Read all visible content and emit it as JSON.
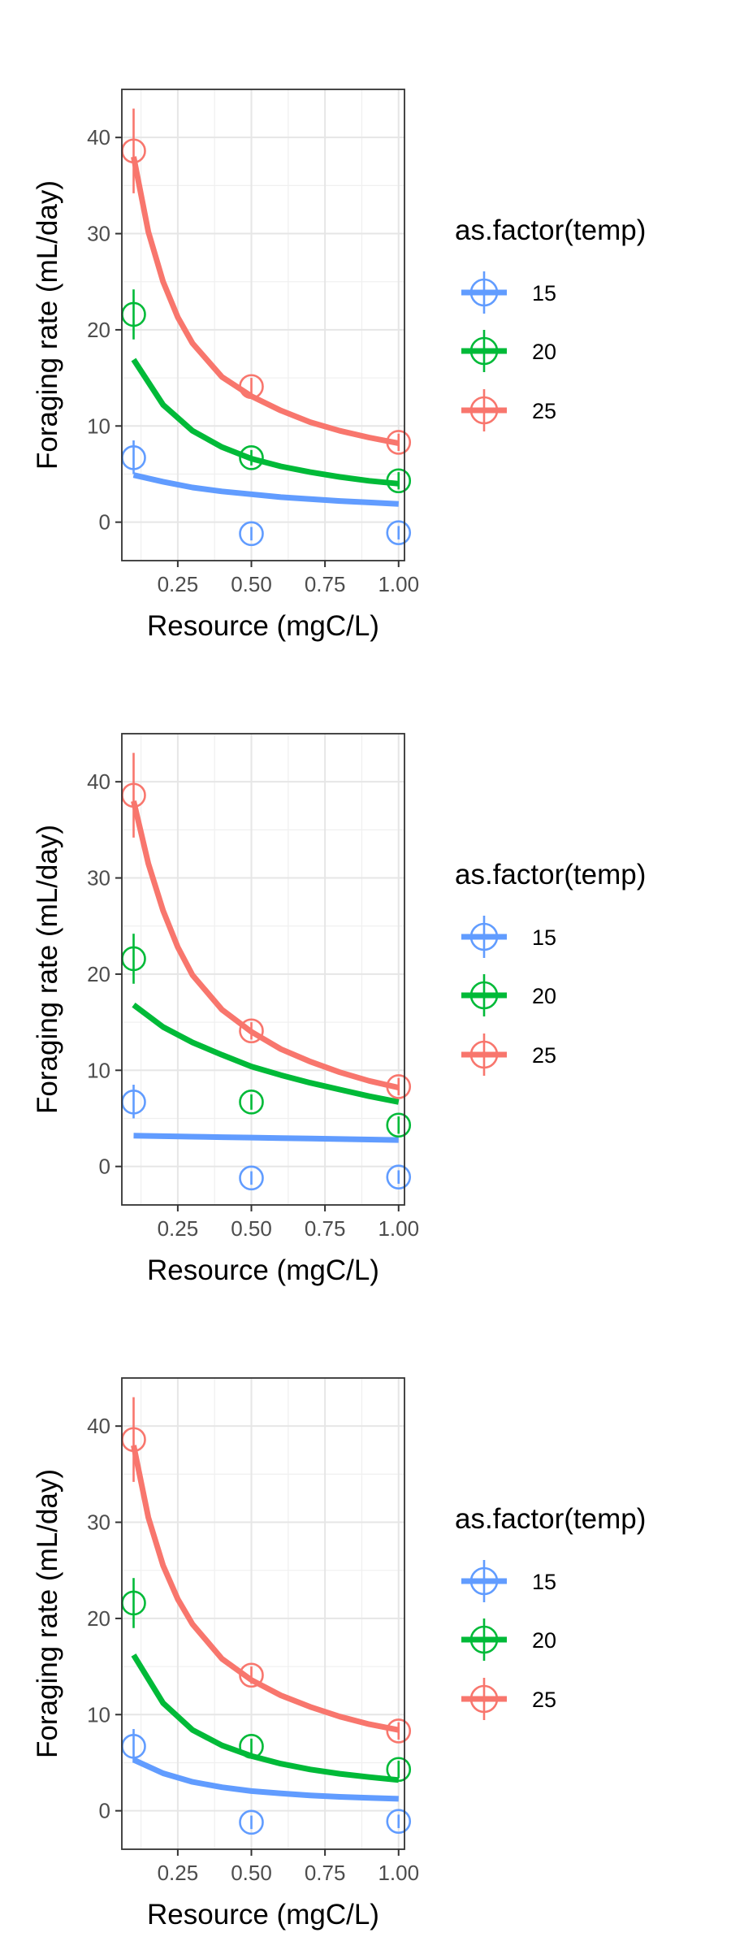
{
  "chart_data": [
    {
      "type": "scatter",
      "xlabel": "Resource (mgC/L)",
      "ylabel": "Foraging rate (mL/day)",
      "xlim": [
        0.06,
        1.02
      ],
      "ylim": [
        -4,
        45
      ],
      "x_ticks": [
        0.25,
        0.5,
        0.75,
        1.0
      ],
      "x_tick_labels": [
        "0.25",
        "0.50",
        "0.75",
        "1.00"
      ],
      "y_ticks": [
        0,
        10,
        20,
        30,
        40
      ],
      "y_tick_labels": [
        "0",
        "10",
        "20",
        "30",
        "40"
      ],
      "grid": true,
      "legend": {
        "title": "as.factor(temp)",
        "position": "right"
      },
      "series": [
        {
          "name": "15",
          "color": "#619CFF",
          "points": [
            {
              "x": 0.1,
              "y": 6.7,
              "ymin": 5.0,
              "ymax": 8.5
            },
            {
              "x": 0.5,
              "y": -1.2,
              "ymin": -1.9,
              "ymax": -0.5
            },
            {
              "x": 1.0,
              "y": -1.1,
              "ymin": -1.8,
              "ymax": -0.4
            }
          ],
          "fit": {
            "x": [
              0.1,
              0.2,
              0.3,
              0.4,
              0.5,
              0.6,
              0.7,
              0.8,
              0.9,
              1.0
            ],
            "y": [
              4.9,
              4.2,
              3.6,
              3.2,
              2.9,
              2.6,
              2.4,
              2.2,
              2.05,
              1.9
            ]
          }
        },
        {
          "name": "20",
          "color": "#00BA38",
          "points": [
            {
              "x": 0.1,
              "y": 21.6,
              "ymin": 19.0,
              "ymax": 24.2
            },
            {
              "x": 0.5,
              "y": 6.7,
              "ymin": 5.9,
              "ymax": 7.5
            },
            {
              "x": 1.0,
              "y": 4.3,
              "ymin": 3.4,
              "ymax": 5.2
            }
          ],
          "fit": {
            "x": [
              0.1,
              0.2,
              0.3,
              0.4,
              0.5,
              0.6,
              0.7,
              0.8,
              0.9,
              1.0
            ],
            "y": [
              16.9,
              12.2,
              9.5,
              7.8,
              6.6,
              5.8,
              5.2,
              4.7,
              4.3,
              4.0
            ]
          }
        },
        {
          "name": "25",
          "color": "#F8766D",
          "points": [
            {
              "x": 0.1,
              "y": 38.6,
              "ymin": 34.2,
              "ymax": 43.0
            },
            {
              "x": 0.5,
              "y": 14.1,
              "ymin": 13.2,
              "ymax": 15.0
            },
            {
              "x": 1.0,
              "y": 8.3,
              "ymin": 7.4,
              "ymax": 9.2
            }
          ],
          "fit": {
            "x": [
              0.1,
              0.15,
              0.2,
              0.25,
              0.3,
              0.4,
              0.5,
              0.6,
              0.7,
              0.8,
              0.9,
              1.0
            ],
            "y": [
              38.0,
              30.2,
              25.0,
              21.3,
              18.6,
              15.1,
              13.1,
              11.6,
              10.4,
              9.5,
              8.8,
              8.2
            ]
          }
        }
      ]
    },
    {
      "type": "scatter",
      "xlabel": "Resource (mgC/L)",
      "ylabel": "Foraging rate (mL/day)",
      "xlim": [
        0.06,
        1.02
      ],
      "ylim": [
        -4,
        45
      ],
      "x_ticks": [
        0.25,
        0.5,
        0.75,
        1.0
      ],
      "x_tick_labels": [
        "0.25",
        "0.50",
        "0.75",
        "1.00"
      ],
      "y_ticks": [
        0,
        10,
        20,
        30,
        40
      ],
      "y_tick_labels": [
        "0",
        "10",
        "20",
        "30",
        "40"
      ],
      "grid": true,
      "legend": {
        "title": "as.factor(temp)",
        "position": "right"
      },
      "series": [
        {
          "name": "15",
          "color": "#619CFF",
          "points": [
            {
              "x": 0.1,
              "y": 6.7,
              "ymin": 5.0,
              "ymax": 8.5
            },
            {
              "x": 0.5,
              "y": -1.2,
              "ymin": -1.9,
              "ymax": -0.5
            },
            {
              "x": 1.0,
              "y": -1.1,
              "ymin": -1.8,
              "ymax": -0.4
            }
          ],
          "fit": {
            "x": [
              0.1,
              0.2,
              0.3,
              0.4,
              0.5,
              0.6,
              0.7,
              0.8,
              0.9,
              1.0
            ],
            "y": [
              3.2,
              3.15,
              3.1,
              3.05,
              3.0,
              2.95,
              2.9,
              2.85,
              2.8,
              2.75
            ]
          }
        },
        {
          "name": "20",
          "color": "#00BA38",
          "points": [
            {
              "x": 0.1,
              "y": 21.6,
              "ymin": 19.0,
              "ymax": 24.2
            },
            {
              "x": 0.5,
              "y": 6.7,
              "ymin": 5.9,
              "ymax": 7.5
            },
            {
              "x": 1.0,
              "y": 4.3,
              "ymin": 3.4,
              "ymax": 5.2
            }
          ],
          "fit": {
            "x": [
              0.1,
              0.2,
              0.3,
              0.4,
              0.5,
              0.6,
              0.7,
              0.8,
              0.9,
              1.0
            ],
            "y": [
              16.8,
              14.5,
              12.9,
              11.6,
              10.4,
              9.5,
              8.7,
              8.0,
              7.3,
              6.7
            ]
          }
        },
        {
          "name": "25",
          "color": "#F8766D",
          "points": [
            {
              "x": 0.1,
              "y": 38.6,
              "ymin": 34.2,
              "ymax": 43.0
            },
            {
              "x": 0.5,
              "y": 14.1,
              "ymin": 13.2,
              "ymax": 15.0
            },
            {
              "x": 1.0,
              "y": 8.3,
              "ymin": 7.4,
              "ymax": 9.2
            }
          ],
          "fit": {
            "x": [
              0.1,
              0.15,
              0.2,
              0.25,
              0.3,
              0.4,
              0.5,
              0.6,
              0.7,
              0.8,
              0.9,
              1.0
            ],
            "y": [
              38.0,
              31.5,
              26.6,
              22.8,
              19.9,
              16.3,
              14.0,
              12.2,
              10.9,
              9.8,
              8.9,
              8.2
            ]
          }
        }
      ]
    },
    {
      "type": "scatter",
      "xlabel": "Resource (mgC/L)",
      "ylabel": "Foraging rate (mL/day)",
      "xlim": [
        0.06,
        1.02
      ],
      "ylim": [
        -4,
        45
      ],
      "x_ticks": [
        0.25,
        0.5,
        0.75,
        1.0
      ],
      "x_tick_labels": [
        "0.25",
        "0.50",
        "0.75",
        "1.00"
      ],
      "y_ticks": [
        0,
        10,
        20,
        30,
        40
      ],
      "y_tick_labels": [
        "0",
        "10",
        "20",
        "30",
        "40"
      ],
      "grid": true,
      "legend": {
        "title": "as.factor(temp)",
        "position": "right"
      },
      "series": [
        {
          "name": "15",
          "color": "#619CFF",
          "points": [
            {
              "x": 0.1,
              "y": 6.7,
              "ymin": 5.0,
              "ymax": 8.5
            },
            {
              "x": 0.5,
              "y": -1.2,
              "ymin": -1.9,
              "ymax": -0.5
            },
            {
              "x": 1.0,
              "y": -1.1,
              "ymin": -1.8,
              "ymax": -0.4
            }
          ],
          "fit": {
            "x": [
              0.1,
              0.2,
              0.3,
              0.4,
              0.5,
              0.6,
              0.7,
              0.8,
              0.9,
              1.0
            ],
            "y": [
              5.3,
              3.9,
              3.0,
              2.45,
              2.05,
              1.8,
              1.6,
              1.45,
              1.35,
              1.25
            ]
          }
        },
        {
          "name": "20",
          "color": "#00BA38",
          "points": [
            {
              "x": 0.1,
              "y": 21.6,
              "ymin": 19.0,
              "ymax": 24.2
            },
            {
              "x": 0.5,
              "y": 6.7,
              "ymin": 5.9,
              "ymax": 7.5
            },
            {
              "x": 1.0,
              "y": 4.3,
              "ymin": 3.4,
              "ymax": 5.2
            }
          ],
          "fit": {
            "x": [
              0.1,
              0.2,
              0.3,
              0.4,
              0.5,
              0.6,
              0.7,
              0.8,
              0.9,
              1.0
            ],
            "y": [
              16.2,
              11.2,
              8.4,
              6.8,
              5.7,
              4.9,
              4.3,
              3.85,
              3.5,
              3.2
            ]
          }
        },
        {
          "name": "25",
          "color": "#F8766D",
          "points": [
            {
              "x": 0.1,
              "y": 38.6,
              "ymin": 34.2,
              "ymax": 43.0
            },
            {
              "x": 0.5,
              "y": 14.1,
              "ymin": 13.2,
              "ymax": 15.0
            },
            {
              "x": 1.0,
              "y": 8.3,
              "ymin": 7.4,
              "ymax": 9.2
            }
          ],
          "fit": {
            "x": [
              0.1,
              0.15,
              0.2,
              0.25,
              0.3,
              0.4,
              0.5,
              0.6,
              0.7,
              0.8,
              0.9,
              1.0
            ],
            "y": [
              38.0,
              30.5,
              25.5,
              22.0,
              19.4,
              15.8,
              13.6,
              12.0,
              10.8,
              9.8,
              9.0,
              8.4
            ]
          }
        }
      ]
    }
  ]
}
